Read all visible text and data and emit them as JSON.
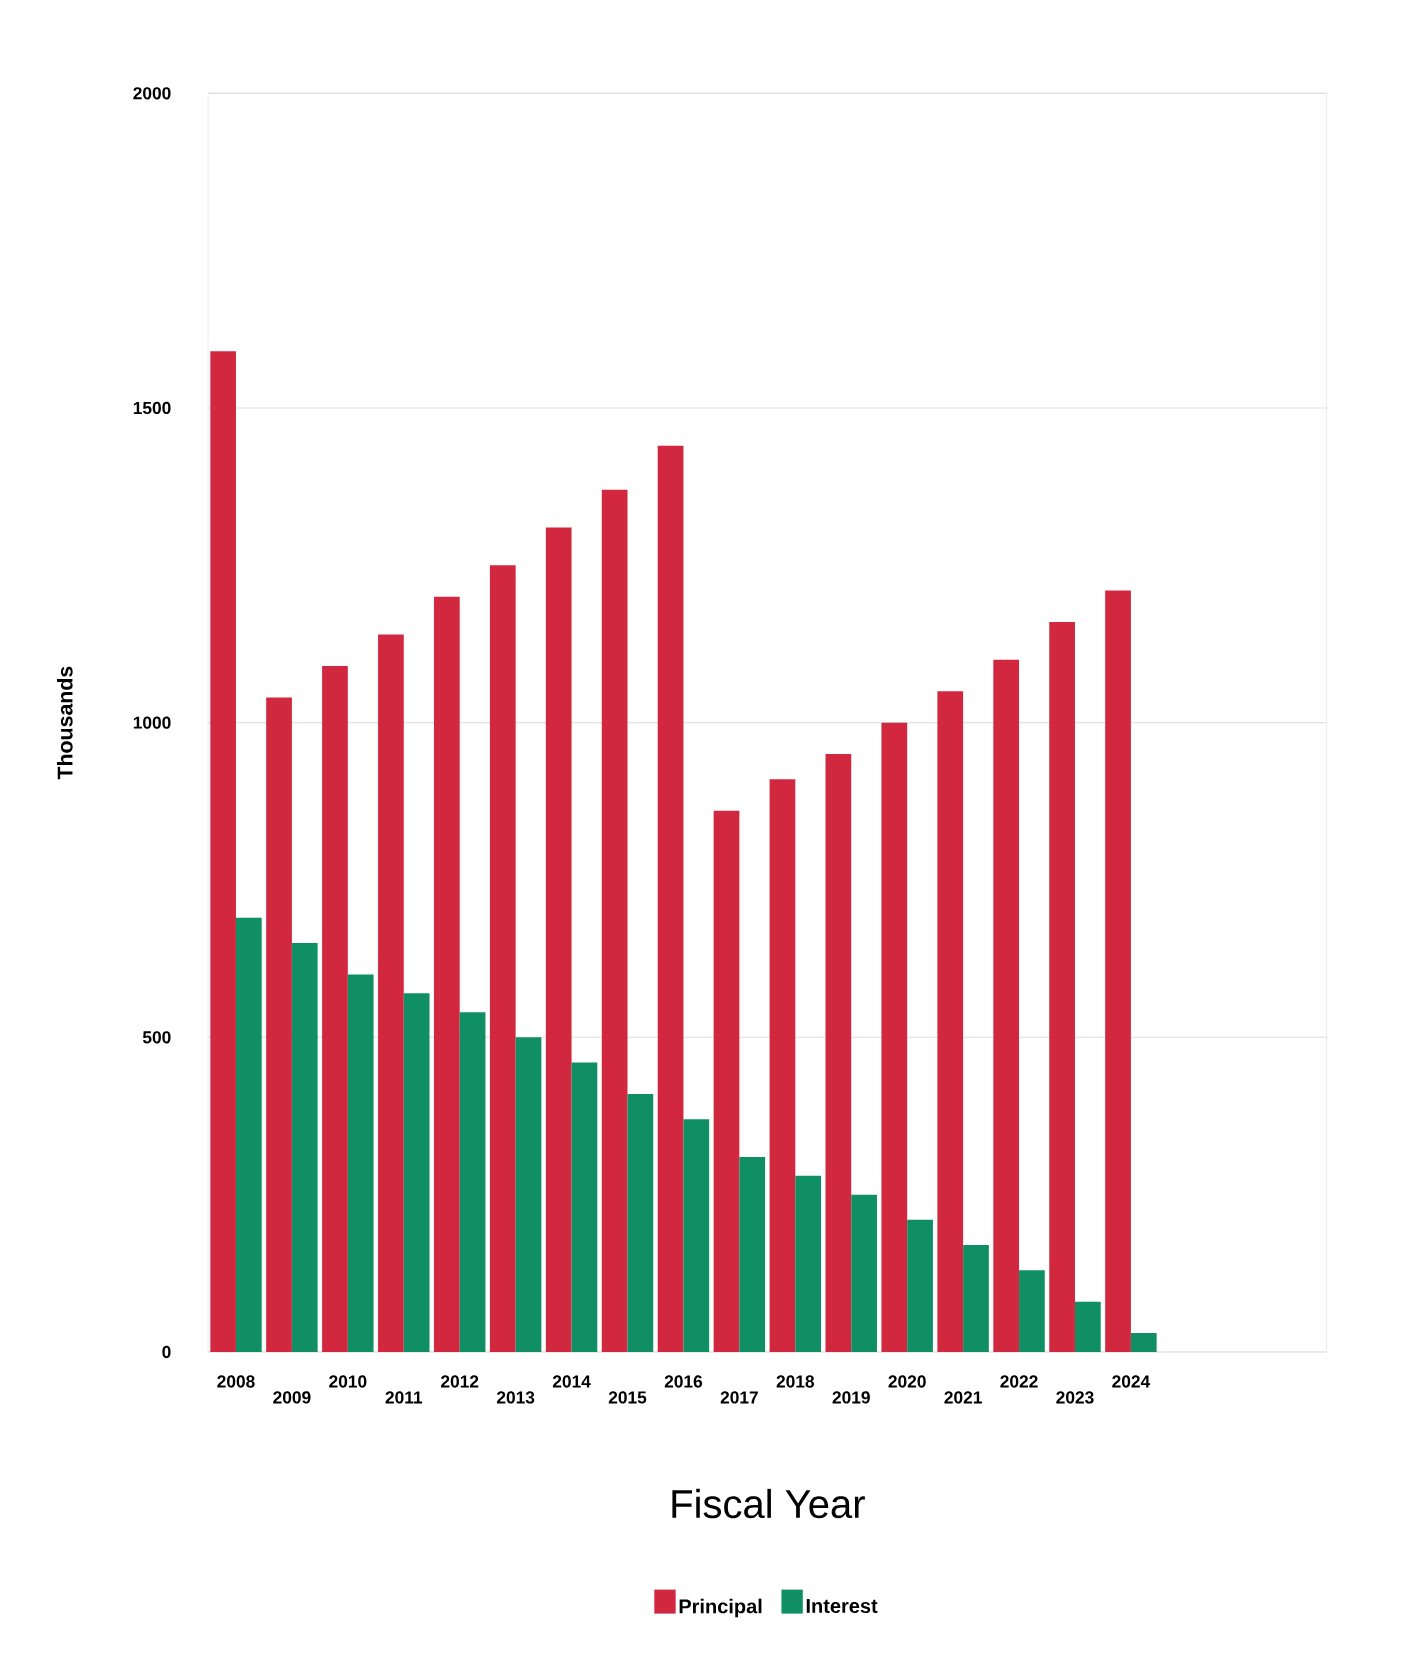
{
  "chart_data": {
    "type": "bar",
    "xlabel": "Fiscal Year",
    "ylabel": "Thousands",
    "categories": [
      "2008",
      "2009",
      "2010",
      "2011",
      "2012",
      "2013",
      "2014",
      "2015",
      "2016",
      "2017",
      "2018",
      "2019",
      "2020",
      "2021",
      "2022",
      "2023",
      "2024"
    ],
    "series": [
      {
        "name": "Principal",
        "color": "#d2283f",
        "values": [
          1590,
          1040,
          1090,
          1140,
          1200,
          1250,
          1310,
          1370,
          1440,
          860,
          910,
          950,
          1000,
          1050,
          1100,
          1160,
          1210
        ]
      },
      {
        "name": "Interest",
        "color": "#0f8f63",
        "values": [
          690,
          650,
          600,
          570,
          540,
          500,
          460,
          410,
          370,
          310,
          280,
          250,
          210,
          170,
          130,
          80,
          30
        ]
      }
    ],
    "ylim": [
      0,
      2000
    ],
    "yticks": [
      0,
      500,
      1000,
      1500,
      2000
    ],
    "grid": "y",
    "legend": "bottom"
  }
}
